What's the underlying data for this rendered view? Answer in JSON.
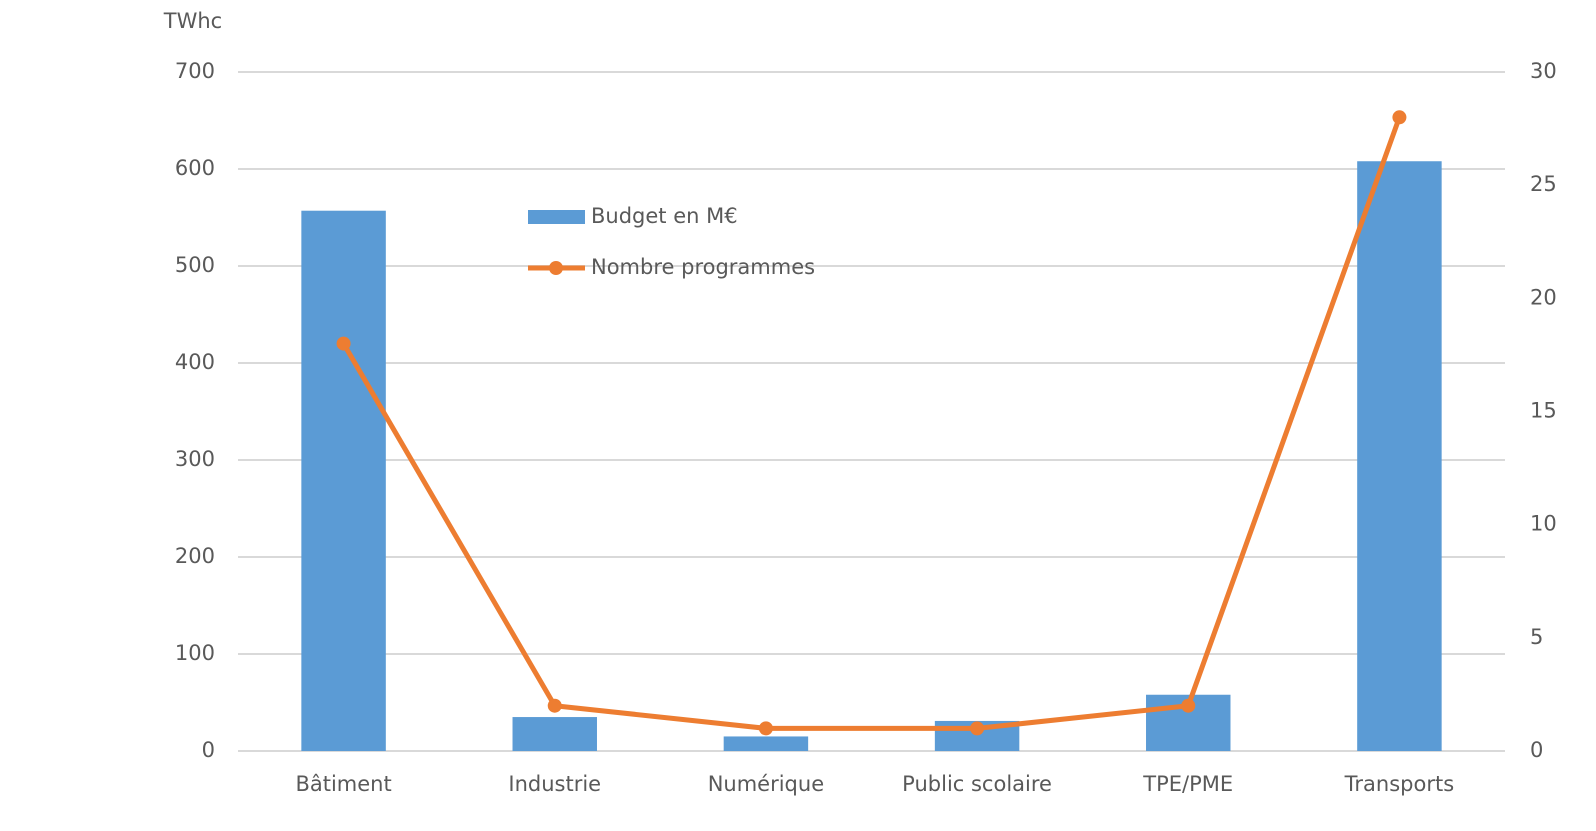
{
  "chart_data": {
    "type": "bar",
    "ylabel": "TWhc",
    "categories": [
      "Bâtiment",
      "Industrie",
      "Numérique",
      "Public scolaire",
      "TPE/PME",
      "Transports"
    ],
    "series": [
      {
        "name": "Budget en M€",
        "type": "bar",
        "color": "#5b9bd5",
        "values": [
          557,
          35,
          15,
          31,
          58,
          608
        ]
      },
      {
        "name": "Nombre programmes",
        "type": "line",
        "axis": "y2",
        "color": "#ed7d31",
        "values": [
          18,
          2,
          1,
          1,
          2,
          28
        ]
      }
    ],
    "ylim": [
      0,
      700
    ],
    "yticks": [
      0,
      100,
      200,
      300,
      400,
      500,
      600,
      700
    ],
    "y2lim": [
      0,
      30
    ],
    "y2ticks": [
      0,
      5,
      10,
      15,
      20,
      25,
      30
    ],
    "grid": true,
    "legend": "top"
  }
}
